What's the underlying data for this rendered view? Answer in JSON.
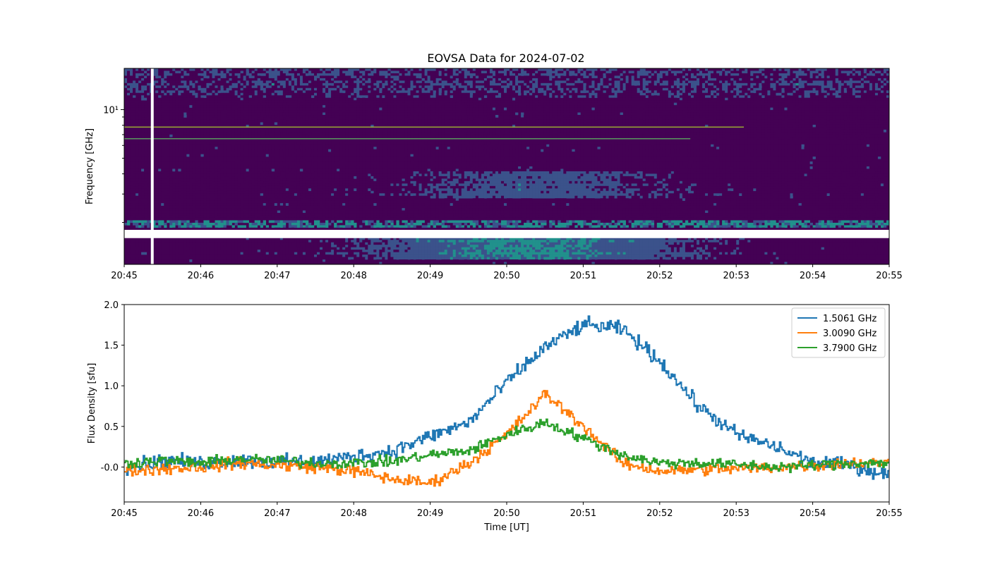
{
  "figure": {
    "title": "EOVSA Data for 2024-07-02"
  },
  "chart_data": [
    {
      "type": "heatmap",
      "title": "EOVSA Data for 2024-07-02",
      "xlabel": "",
      "ylabel": "Frequency [GHz]",
      "y_scale": "log",
      "y_tick_labels": [
        "10¹"
      ],
      "x_tick_labels": [
        "20:45",
        "20:46",
        "20:47",
        "20:48",
        "20:49",
        "20:50",
        "20:51",
        "20:52",
        "20:53",
        "20:54",
        "20:55"
      ],
      "x_range": [
        "20:45",
        "20:55"
      ],
      "y_range_ghz": [
        1.1,
        18
      ],
      "colormap": [
        "#440154",
        "#3b528b",
        "#21918c",
        "#5ec962",
        "#fde725"
      ],
      "grid": false,
      "features": {
        "flare_peak_time": "20:50",
        "flare_low_band_ghz": [
          1.2,
          1.6
        ],
        "flare_mid_band_ghz": [
          2.8,
          4.2
        ],
        "gap_band_ghz": [
          1.6,
          1.8
        ],
        "gap_column_time": "20:45:22"
      }
    },
    {
      "type": "line",
      "title": "",
      "xlabel": "Time [UT]",
      "ylabel": "Flux Density [sfu]",
      "x_tick_labels": [
        "20:45",
        "20:46",
        "20:47",
        "20:48",
        "20:49",
        "20:50",
        "20:51",
        "20:52",
        "20:53",
        "20:54",
        "20:55"
      ],
      "y_ticks": [
        "-0.0",
        "0.5",
        "1.0",
        "1.5",
        "2.0"
      ],
      "xlim_minutes": [
        0,
        10
      ],
      "ylim": [
        -0.43,
        2.0
      ],
      "legend_position": "top-right",
      "grid": false,
      "x_minutes": [
        0,
        0.5,
        1,
        1.5,
        2,
        2.5,
        3,
        3.5,
        4,
        4.5,
        5,
        5.5,
        6,
        6.5,
        7,
        7.5,
        8,
        8.5,
        9,
        9.5,
        10
      ],
      "series": [
        {
          "name": "1.5061 GHz",
          "color": "#1f77b4",
          "values": [
            0.0,
            0.08,
            0.05,
            0.08,
            0.06,
            0.07,
            0.13,
            0.2,
            0.38,
            0.55,
            1.05,
            1.48,
            1.75,
            1.7,
            1.3,
            0.75,
            0.4,
            0.25,
            0.05,
            0.02,
            -0.1
          ]
        },
        {
          "name": "3.0090 GHz",
          "color": "#ff7f0e",
          "values": [
            -0.05,
            -0.02,
            0.0,
            0.05,
            0.02,
            0.0,
            -0.05,
            -0.15,
            -0.2,
            0.05,
            0.4,
            0.9,
            0.5,
            0.05,
            -0.05,
            -0.03,
            -0.02,
            0.0,
            0.02,
            0.05,
            0.05
          ]
        },
        {
          "name": "3.7900 GHz",
          "color": "#2ca02c",
          "values": [
            0.05,
            0.08,
            0.05,
            0.1,
            0.08,
            0.05,
            0.05,
            0.07,
            0.15,
            0.2,
            0.4,
            0.55,
            0.35,
            0.15,
            0.05,
            0.05,
            0.03,
            0.0,
            0.02,
            0.05,
            0.05
          ]
        }
      ]
    }
  ]
}
